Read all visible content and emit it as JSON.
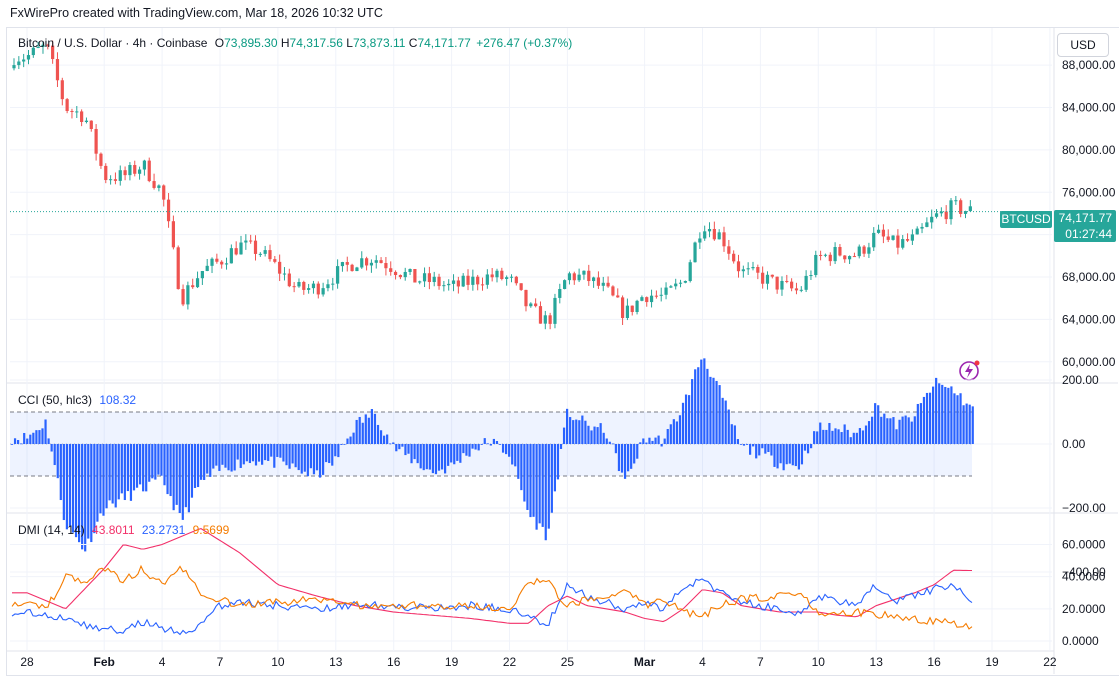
{
  "header": {
    "attribution": "FxWirePro created with TradingView.com, Mar 18, 2026 10:32 UTC"
  },
  "legend": {
    "symbol": "Bitcoin / U.S. Dollar · 4h · Coinbase",
    "open_label": "O",
    "open": "73,895.30",
    "high_label": "H",
    "high": "74,317.56",
    "low_label": "L",
    "low": "73,873.11",
    "close_label": "C",
    "close": "74,171.77",
    "change": "+276.47 (+0.37%)"
  },
  "currency_button": "USD",
  "price_tag": {
    "symbol": "BTCUSD",
    "price": "74,171.77",
    "countdown": "01:27:44"
  },
  "cci_legend": {
    "name": "CCI (50, hlc3)",
    "value": "108.32"
  },
  "dmi_legend": {
    "name": "DMI (14, 14)",
    "adx": "43.8011",
    "plus_di": "23.2731",
    "minus_di": "9.5699"
  },
  "colors": {
    "up": "#26a69a",
    "down": "#ef5350",
    "cci": "#2962ff",
    "adx": "#f23069",
    "plus_di": "#2962ff",
    "minus_di": "#f57c00",
    "current_price": "#26a69a"
  },
  "chart_data": [
    {
      "type": "candlestick",
      "title": "Bitcoin / U.S. Dollar · 4h · Coinbase",
      "ylim": [
        58000,
        92000
      ],
      "y_ticks": [
        "88,000.00",
        "84,000.00",
        "80,000.00",
        "76,000.00",
        "72,000.00",
        "68,000.00",
        "64,000.00",
        "60,000.00"
      ],
      "y_tick_values": [
        88000,
        84000,
        80000,
        76000,
        72000,
        68000,
        64000,
        60000
      ],
      "x_ticks": [
        "28",
        "Feb",
        "4",
        "7",
        "10",
        "13",
        "16",
        "19",
        "22",
        "25",
        "Mar",
        "4",
        "7",
        "10",
        "13",
        "16",
        "19",
        "22"
      ],
      "current_price": 74171.77,
      "close_path": [
        {
          "date": "Jan 28",
          "value": 88800
        },
        {
          "date": "Jan 29",
          "value": 89800
        },
        {
          "date": "Jan 30",
          "value": 84000
        },
        {
          "date": "Jan 31",
          "value": 83200
        },
        {
          "date": "Feb 1",
          "value": 77500
        },
        {
          "date": "Feb 2",
          "value": 77500
        },
        {
          "date": "Feb 3",
          "value": 78600
        },
        {
          "date": "Feb 4",
          "value": 76000
        },
        {
          "date": "Feb 5",
          "value": 66000
        },
        {
          "date": "Feb 6",
          "value": 68500
        },
        {
          "date": "Feb 7",
          "value": 69500
        },
        {
          "date": "Feb 8",
          "value": 71000
        },
        {
          "date": "Feb 9",
          "value": 70500
        },
        {
          "date": "Feb 10",
          "value": 68800
        },
        {
          "date": "Feb 11",
          "value": 66800
        },
        {
          "date": "Feb 12",
          "value": 67000
        },
        {
          "date": "Feb 14",
          "value": 69500
        },
        {
          "date": "Feb 15",
          "value": 69800
        },
        {
          "date": "Feb 16",
          "value": 68900
        },
        {
          "date": "Feb 17",
          "value": 67800
        },
        {
          "date": "Feb 18",
          "value": 67600
        },
        {
          "date": "Feb 19",
          "value": 67000
        },
        {
          "date": "Feb 20",
          "value": 67600
        },
        {
          "date": "Feb 21",
          "value": 68100
        },
        {
          "date": "Feb 22",
          "value": 67800
        },
        {
          "date": "Feb 23",
          "value": 65000
        },
        {
          "date": "Feb 24",
          "value": 63700
        },
        {
          "date": "Feb 25",
          "value": 68200
        },
        {
          "date": "Feb 26",
          "value": 67900
        },
        {
          "date": "Feb 27",
          "value": 66700
        },
        {
          "date": "Feb 28",
          "value": 64500
        },
        {
          "date": "Mar 1",
          "value": 66400
        },
        {
          "date": "Mar 2",
          "value": 66100
        },
        {
          "date": "Mar 3",
          "value": 67600
        },
        {
          "date": "Mar 4",
          "value": 73200
        },
        {
          "date": "Mar 5",
          "value": 71800
        },
        {
          "date": "Mar 6",
          "value": 68500
        },
        {
          "date": "Mar 7",
          "value": 68000
        },
        {
          "date": "Mar 8",
          "value": 67200
        },
        {
          "date": "Mar 9",
          "value": 66600
        },
        {
          "date": "Mar 10",
          "value": 69800
        },
        {
          "date": "Mar 11",
          "value": 70300
        },
        {
          "date": "Mar 12",
          "value": 70100
        },
        {
          "date": "Mar 13",
          "value": 72000
        },
        {
          "date": "Mar 14",
          "value": 71000
        },
        {
          "date": "Mar 15",
          "value": 71600
        },
        {
          "date": "Mar 16",
          "value": 73600
        },
        {
          "date": "Mar 17",
          "value": 74600
        },
        {
          "date": "Mar 18",
          "value": 74171.77
        }
      ]
    },
    {
      "type": "histogram",
      "title": "CCI (50, hlc3)",
      "ylim": [
        -400,
        250
      ],
      "y_ticks": [
        "200.00",
        "0.00",
        "−200.00",
        "−400.00"
      ],
      "y_tick_values": [
        200,
        0,
        -200,
        -400
      ],
      "bands": [
        100,
        -100
      ],
      "current_value": 108.32,
      "points": [
        {
          "date": "Jan 28",
          "value": 20
        },
        {
          "date": "Jan 29",
          "value": 70
        },
        {
          "date": "Jan 30",
          "value": -250
        },
        {
          "date": "Jan 31",
          "value": -330
        },
        {
          "date": "Feb 1",
          "value": -200
        },
        {
          "date": "Feb 2",
          "value": -170
        },
        {
          "date": "Feb 3",
          "value": -140
        },
        {
          "date": "Feb 4",
          "value": -110
        },
        {
          "date": "Feb 5",
          "value": -240
        },
        {
          "date": "Feb 6",
          "value": -120
        },
        {
          "date": "Feb 7",
          "value": -80
        },
        {
          "date": "Feb 8",
          "value": -60
        },
        {
          "date": "Feb 9",
          "value": -50
        },
        {
          "date": "Feb 10",
          "value": -60
        },
        {
          "date": "Feb 11",
          "value": -80
        },
        {
          "date": "Feb 12",
          "value": -100
        },
        {
          "date": "Feb 13",
          "value": -50
        },
        {
          "date": "Feb 14",
          "value": 60
        },
        {
          "date": "Feb 15",
          "value": 100
        },
        {
          "date": "Feb 16",
          "value": -10
        },
        {
          "date": "Feb 17",
          "value": -50
        },
        {
          "date": "Feb 18",
          "value": -90
        },
        {
          "date": "Feb 19",
          "value": -70
        },
        {
          "date": "Feb 20",
          "value": -20
        },
        {
          "date": "Feb 21",
          "value": 10
        },
        {
          "date": "Feb 22",
          "value": -30
        },
        {
          "date": "Feb 23",
          "value": -220
        },
        {
          "date": "Feb 24",
          "value": -290
        },
        {
          "date": "Feb 25",
          "value": 100
        },
        {
          "date": "Feb 26",
          "value": 60
        },
        {
          "date": "Feb 27",
          "value": 40
        },
        {
          "date": "Feb 28",
          "value": -120
        },
        {
          "date": "Mar 1",
          "value": 20
        },
        {
          "date": "Mar 2",
          "value": 10
        },
        {
          "date": "Mar 3",
          "value": 120
        },
        {
          "date": "Mar 4",
          "value": 280
        },
        {
          "date": "Mar 5",
          "value": 150
        },
        {
          "date": "Mar 6",
          "value": -10
        },
        {
          "date": "Mar 7",
          "value": -30
        },
        {
          "date": "Mar 8",
          "value": -60
        },
        {
          "date": "Mar 9",
          "value": -70
        },
        {
          "date": "Mar 10",
          "value": 50
        },
        {
          "date": "Mar 11",
          "value": 50
        },
        {
          "date": "Mar 12",
          "value": 30
        },
        {
          "date": "Mar 13",
          "value": 120
        },
        {
          "date": "Mar 14",
          "value": 60
        },
        {
          "date": "Mar 15",
          "value": 90
        },
        {
          "date": "Mar 16",
          "value": 190
        },
        {
          "date": "Mar 17",
          "value": 170
        },
        {
          "date": "Mar 18",
          "value": 108.32
        }
      ]
    },
    {
      "type": "line",
      "title": "DMI (14, 14)",
      "ylim": [
        -2,
        72
      ],
      "y_ticks": [
        "60.0000",
        "40.0000",
        "20.0000",
        "0.0000"
      ],
      "y_tick_values": [
        60,
        40,
        20,
        0
      ],
      "series": [
        {
          "name": "ADX",
          "color": "#f23069",
          "points": [
            {
              "date": "Jan 28",
              "value": 30
            },
            {
              "date": "Jan 30",
              "value": 20
            },
            {
              "date": "Feb 1",
              "value": 45
            },
            {
              "date": "Feb 2",
              "value": 60
            },
            {
              "date": "Feb 3",
              "value": 57
            },
            {
              "date": "Feb 4",
              "value": 60
            },
            {
              "date": "Feb 6",
              "value": 70
            },
            {
              "date": "Feb 8",
              "value": 55
            },
            {
              "date": "Feb 10",
              "value": 35
            },
            {
              "date": "Feb 12",
              "value": 28
            },
            {
              "date": "Feb 14",
              "value": 22
            },
            {
              "date": "Feb 16",
              "value": 18
            },
            {
              "date": "Feb 18",
              "value": 16
            },
            {
              "date": "Feb 20",
              "value": 14
            },
            {
              "date": "Feb 22",
              "value": 11
            },
            {
              "date": "Feb 23",
              "value": 11
            },
            {
              "date": "Feb 24",
              "value": 22
            },
            {
              "date": "Feb 25",
              "value": 28
            },
            {
              "date": "Feb 26",
              "value": 22
            },
            {
              "date": "Feb 28",
              "value": 18
            },
            {
              "date": "Mar 1",
              "value": 14
            },
            {
              "date": "Mar 2",
              "value": 12
            },
            {
              "date": "Mar 3",
              "value": 20
            },
            {
              "date": "Mar 4",
              "value": 32
            },
            {
              "date": "Mar 5",
              "value": 30
            },
            {
              "date": "Mar 6",
              "value": 22
            },
            {
              "date": "Mar 8",
              "value": 18
            },
            {
              "date": "Mar 10",
              "value": 18
            },
            {
              "date": "Mar 11",
              "value": 16
            },
            {
              "date": "Mar 12",
              "value": 15
            },
            {
              "date": "Mar 13",
              "value": 22
            },
            {
              "date": "Mar 14",
              "value": 26
            },
            {
              "date": "Mar 15",
              "value": 30
            },
            {
              "date": "Mar 16",
              "value": 35
            },
            {
              "date": "Mar 17",
              "value": 44
            },
            {
              "date": "Mar 18",
              "value": 43.8011
            }
          ]
        },
        {
          "name": "+DI",
          "color": "#2962ff",
          "points": [
            {
              "date": "Jan 28",
              "value": 18
            },
            {
              "date": "Jan 30",
              "value": 14
            },
            {
              "date": "Jan 31",
              "value": 10
            },
            {
              "date": "Feb 1",
              "value": 8
            },
            {
              "date": "Feb 2",
              "value": 6
            },
            {
              "date": "Feb 3",
              "value": 12
            },
            {
              "date": "Feb 4",
              "value": 8
            },
            {
              "date": "Feb 5",
              "value": 4
            },
            {
              "date": "Feb 6",
              "value": 10
            },
            {
              "date": "Feb 7",
              "value": 22
            },
            {
              "date": "Feb 8",
              "value": 25
            },
            {
              "date": "Feb 10",
              "value": 22
            },
            {
              "date": "Feb 12",
              "value": 20
            },
            {
              "date": "Feb 14",
              "value": 22
            },
            {
              "date": "Feb 16",
              "value": 22
            },
            {
              "date": "Feb 18",
              "value": 20
            },
            {
              "date": "Feb 20",
              "value": 22
            },
            {
              "date": "Feb 22",
              "value": 20
            },
            {
              "date": "Feb 24",
              "value": 10
            },
            {
              "date": "Feb 25",
              "value": 36
            },
            {
              "date": "Feb 26",
              "value": 28
            },
            {
              "date": "Feb 28",
              "value": 20
            },
            {
              "date": "Mar 1",
              "value": 25
            },
            {
              "date": "Mar 2",
              "value": 20
            },
            {
              "date": "Mar 3",
              "value": 32
            },
            {
              "date": "Mar 4",
              "value": 38
            },
            {
              "date": "Mar 5",
              "value": 30
            },
            {
              "date": "Mar 6",
              "value": 24
            },
            {
              "date": "Mar 8",
              "value": 20
            },
            {
              "date": "Mar 9",
              "value": 17
            },
            {
              "date": "Mar 10",
              "value": 28
            },
            {
              "date": "Mar 12",
              "value": 22
            },
            {
              "date": "Mar 13",
              "value": 35
            },
            {
              "date": "Mar 14",
              "value": 25
            },
            {
              "date": "Mar 16",
              "value": 32
            },
            {
              "date": "Mar 17",
              "value": 36
            },
            {
              "date": "Mar 18",
              "value": 23.2731
            }
          ]
        },
        {
          "name": "−DI",
          "color": "#f57c00",
          "points": [
            {
              "date": "Jan 28",
              "value": 24
            },
            {
              "date": "Jan 29",
              "value": 20
            },
            {
              "date": "Jan 30",
              "value": 40
            },
            {
              "date": "Jan 31",
              "value": 38
            },
            {
              "date": "Feb 1",
              "value": 44
            },
            {
              "date": "Feb 2",
              "value": 38
            },
            {
              "date": "Feb 3",
              "value": 45
            },
            {
              "date": "Feb 4",
              "value": 35
            },
            {
              "date": "Feb 5",
              "value": 46
            },
            {
              "date": "Feb 6",
              "value": 30
            },
            {
              "date": "Feb 8",
              "value": 22
            },
            {
              "date": "Feb 10",
              "value": 24
            },
            {
              "date": "Feb 12",
              "value": 26
            },
            {
              "date": "Feb 14",
              "value": 22
            },
            {
              "date": "Feb 16",
              "value": 22
            },
            {
              "date": "Feb 18",
              "value": 22
            },
            {
              "date": "Feb 20",
              "value": 22
            },
            {
              "date": "Feb 22",
              "value": 20
            },
            {
              "date": "Feb 23",
              "value": 38
            },
            {
              "date": "Feb 24",
              "value": 36
            },
            {
              "date": "Feb 25",
              "value": 22
            },
            {
              "date": "Feb 26",
              "value": 26
            },
            {
              "date": "Feb 28",
              "value": 32
            },
            {
              "date": "Mar 1",
              "value": 22
            },
            {
              "date": "Mar 2",
              "value": 26
            },
            {
              "date": "Mar 3",
              "value": 18
            },
            {
              "date": "Mar 4",
              "value": 16
            },
            {
              "date": "Mar 5",
              "value": 22
            },
            {
              "date": "Mar 6",
              "value": 26
            },
            {
              "date": "Mar 8",
              "value": 28
            },
            {
              "date": "Mar 9",
              "value": 30
            },
            {
              "date": "Mar 10",
              "value": 18
            },
            {
              "date": "Mar 12",
              "value": 18
            },
            {
              "date": "Mar 14",
              "value": 15
            },
            {
              "date": "Mar 16",
              "value": 12
            },
            {
              "date": "Mar 17",
              "value": 11
            },
            {
              "date": "Mar 18",
              "value": 9.5699
            }
          ]
        }
      ]
    }
  ]
}
